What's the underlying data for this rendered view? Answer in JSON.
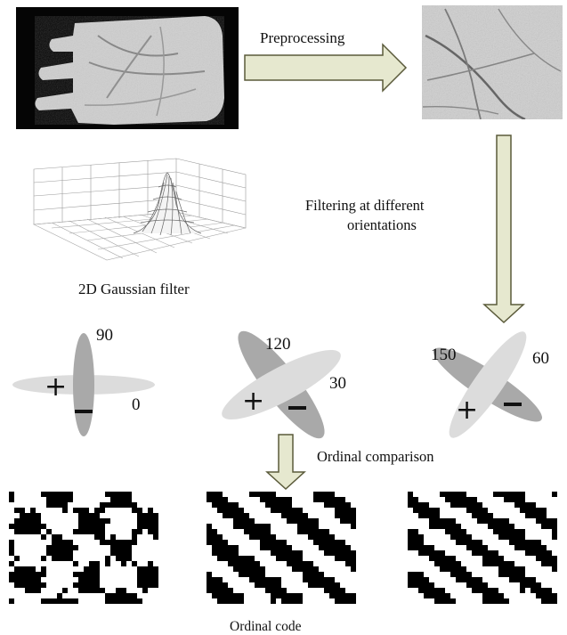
{
  "labels": {
    "preprocessing": "Preprocessing",
    "filtering_line1": "Filtering at different",
    "filtering_line2": "orientations",
    "gaussian_caption": "2D Gaussian filter",
    "ordinal_comparison": "Ordinal comparison",
    "ordinal_code": "Ordinal code"
  },
  "orientation_pairs": [
    {
      "first": "90",
      "second": "0"
    },
    {
      "first": "120",
      "second": "30"
    },
    {
      "first": "150",
      "second": "60"
    }
  ],
  "signs": {
    "plus": "+",
    "minus": "−"
  },
  "colors": {
    "arrow_fill": "#e6e8cf",
    "arrow_stroke": "#5a5a3a",
    "ellipse_dark": "#a9a9a9",
    "ellipse_light": "#dcdcdc",
    "photo_bg": "#000000",
    "texture_bg": "#cfcfcf"
  }
}
